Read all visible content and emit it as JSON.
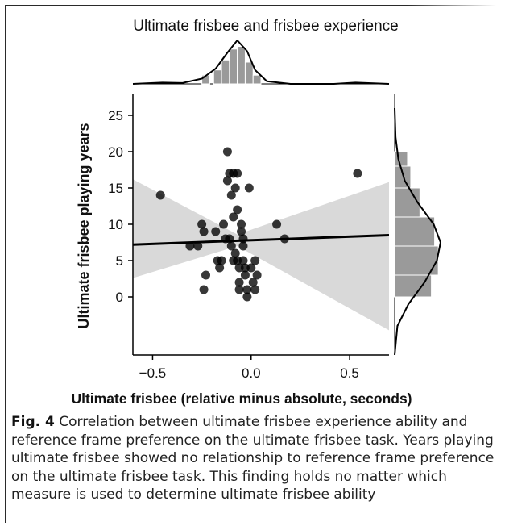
{
  "figure": {
    "caption_label": "Fig. 4",
    "caption_text": "Correlation between ultimate frisbee experience ability and reference frame preference on the ultimate frisbee task. Years playing ultimate frisbee showed no relationship to reference frame preference on the ultimate frisbee task. This finding holds no matter which measure is used to determine ultimate frisbee ability"
  },
  "chart_data": {
    "type": "scatter",
    "title": "Ultimate frisbee and frisbee experience",
    "xlabel": "Ultimate frisbee (relative minus absolute, seconds)",
    "ylabel": "Ultimate frisbee playing  years",
    "xlim": [
      -0.6,
      0.7
    ],
    "ylim": [
      -8,
      28
    ],
    "xticks": [
      -0.5,
      0.0,
      0.5
    ],
    "xtick_labels": [
      "−0.5",
      "0.0",
      "0.5"
    ],
    "yticks": [
      0,
      5,
      10,
      15,
      20,
      25
    ],
    "ytick_labels": [
      "0",
      "5",
      "10",
      "15",
      "20",
      "25"
    ],
    "grid": false,
    "point_color": "#000000",
    "points": [
      {
        "x": -0.46,
        "y": 14
      },
      {
        "x": 0.54,
        "y": 17
      },
      {
        "x": 0.13,
        "y": 10
      },
      {
        "x": 0.17,
        "y": 8
      },
      {
        "x": -0.31,
        "y": 7
      },
      {
        "x": -0.27,
        "y": 7
      },
      {
        "x": -0.25,
        "y": 10
      },
      {
        "x": -0.24,
        "y": 9
      },
      {
        "x": -0.23,
        "y": 3
      },
      {
        "x": -0.24,
        "y": 1
      },
      {
        "x": -0.18,
        "y": 9
      },
      {
        "x": -0.17,
        "y": 5
      },
      {
        "x": -0.15,
        "y": 5
      },
      {
        "x": -0.16,
        "y": 4
      },
      {
        "x": -0.14,
        "y": 10
      },
      {
        "x": -0.12,
        "y": 20
      },
      {
        "x": -0.12,
        "y": 16
      },
      {
        "x": -0.11,
        "y": 17
      },
      {
        "x": -0.09,
        "y": 17
      },
      {
        "x": -0.1,
        "y": 14
      },
      {
        "x": -0.09,
        "y": 11
      },
      {
        "x": -0.08,
        "y": 15
      },
      {
        "x": -0.07,
        "y": 12
      },
      {
        "x": -0.07,
        "y": 17
      },
      {
        "x": -0.11,
        "y": 8
      },
      {
        "x": -0.1,
        "y": 7
      },
      {
        "x": -0.09,
        "y": 5
      },
      {
        "x": -0.08,
        "y": 6
      },
      {
        "x": -0.07,
        "y": 5
      },
      {
        "x": -0.06,
        "y": 4
      },
      {
        "x": -0.06,
        "y": 2
      },
      {
        "x": -0.06,
        "y": 1
      },
      {
        "x": -0.05,
        "y": 9
      },
      {
        "x": -0.04,
        "y": 8
      },
      {
        "x": -0.04,
        "y": 7
      },
      {
        "x": -0.04,
        "y": 5
      },
      {
        "x": -0.03,
        "y": 4
      },
      {
        "x": -0.03,
        "y": 3
      },
      {
        "x": -0.02,
        "y": 1
      },
      {
        "x": -0.02,
        "y": 0
      },
      {
        "x": -0.01,
        "y": 15
      },
      {
        "x": 0.0,
        "y": 4
      },
      {
        "x": 0.01,
        "y": 2
      },
      {
        "x": 0.02,
        "y": 1
      },
      {
        "x": 0.02,
        "y": 5
      },
      {
        "x": 0.03,
        "y": 3
      },
      {
        "x": -0.05,
        "y": 10
      },
      {
        "x": -0.13,
        "y": 8
      }
    ],
    "regression": {
      "slope": 1.0,
      "intercept": 7.8,
      "x_range": [
        -0.6,
        0.7
      ]
    },
    "confidence_band": [
      {
        "x": -0.6,
        "lower": 2.6,
        "upper": 16.2
      },
      {
        "x": -0.07,
        "lower": 7.0,
        "upper": 8.6
      },
      {
        "x": 0.7,
        "lower": -4.6,
        "upper": 15.8
      }
    ],
    "marginal_x": {
      "bins": [
        [
          -0.25,
          -0.21,
          0.2
        ],
        [
          -0.19,
          -0.15,
          0.32
        ],
        [
          -0.15,
          -0.11,
          0.55
        ],
        [
          -0.11,
          -0.07,
          0.8
        ],
        [
          -0.07,
          -0.03,
          0.86
        ],
        [
          -0.03,
          0.01,
          0.5
        ],
        [
          0.01,
          0.05,
          0.2
        ]
      ],
      "kde": [
        [
          -0.6,
          0.0
        ],
        [
          -0.45,
          0.03
        ],
        [
          -0.35,
          0.02
        ],
        [
          -0.25,
          0.12
        ],
        [
          -0.18,
          0.35
        ],
        [
          -0.12,
          0.72
        ],
        [
          -0.07,
          1.0
        ],
        [
          -0.02,
          0.75
        ],
        [
          0.02,
          0.32
        ],
        [
          0.08,
          0.06
        ],
        [
          0.2,
          0.0
        ],
        [
          0.42,
          0.0
        ],
        [
          0.53,
          0.03
        ],
        [
          0.7,
          0.0
        ]
      ]
    },
    "marginal_y": {
      "bins": [
        [
          0,
          3,
          0.8
        ],
        [
          3,
          7,
          0.95
        ],
        [
          7,
          11,
          0.87
        ],
        [
          11,
          15,
          0.55
        ],
        [
          15,
          18,
          0.35
        ],
        [
          18,
          20,
          0.28
        ]
      ],
      "kde": [
        [
          -8,
          0.0
        ],
        [
          -4,
          0.06
        ],
        [
          -1,
          0.3
        ],
        [
          2,
          0.65
        ],
        [
          5,
          0.92
        ],
        [
          7.5,
          1.0
        ],
        [
          10,
          0.85
        ],
        [
          13,
          0.5
        ],
        [
          16,
          0.22
        ],
        [
          19,
          0.08
        ],
        [
          22,
          0.02
        ],
        [
          26,
          0.0
        ]
      ]
    }
  }
}
